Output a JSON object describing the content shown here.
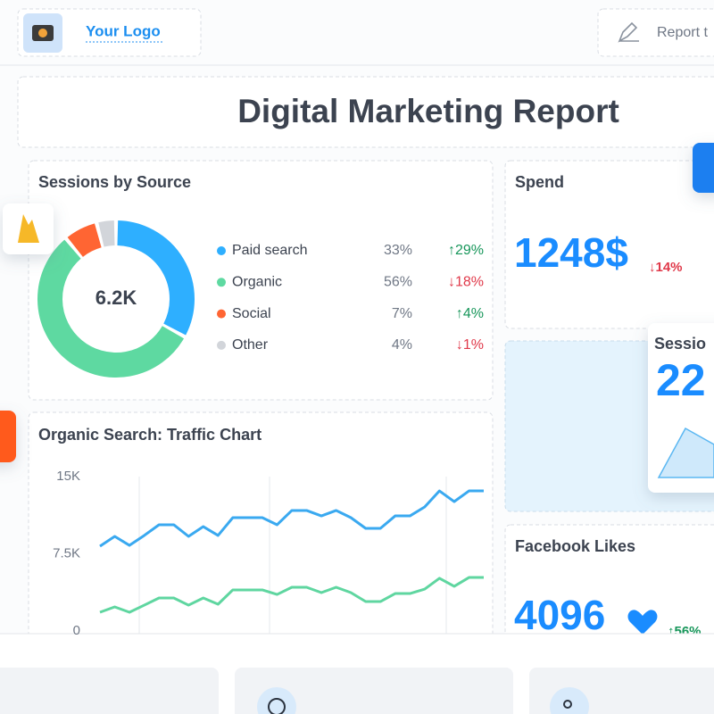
{
  "header": {
    "logo_text": "Your Logo",
    "action": "Report t"
  },
  "title": "Digital Marketing Report",
  "sessions_by_source": {
    "title": "Sessions by Source",
    "center_label": "6.2K",
    "items": [
      {
        "name": "Paid search",
        "color": "#2eafff",
        "share": 33,
        "share_label": "33%",
        "change_label": "↑29%",
        "change_color": "#17965a"
      },
      {
        "name": "Organic",
        "color": "#5ed9a1",
        "share": 56,
        "share_label": "56%",
        "change_label": "↓18%",
        "change_color": "#e0394a"
      },
      {
        "name": "Social",
        "color": "#ff6533",
        "share": 7,
        "share_label": "7%",
        "change_label": "↑4%",
        "change_color": "#17965a"
      },
      {
        "name": "Other",
        "color": "#d2d5da",
        "share": 4,
        "share_label": "4%",
        "change_label": "↓1%",
        "change_color": "#e0394a"
      }
    ]
  },
  "traffic_chart": {
    "type": "line",
    "title": "Organic Search: Traffic Chart",
    "ylim": [
      0,
      15000
    ],
    "yticks": [
      0,
      {
        "value": 7500,
        "label": "7.5K"
      },
      {
        "value": 15000,
        "label": "15K"
      }
    ],
    "series": [
      {
        "color": "#3aa9f0",
        "values": [
          8240,
          9190,
          8320,
          9280,
          10320,
          10320,
          9190,
          10140,
          9280,
          11010,
          11010,
          11010,
          10320,
          11710,
          11710,
          11180,
          11710,
          11010,
          9970,
          9970,
          11180,
          11180,
          12050,
          13610,
          12570,
          13610,
          13610
        ]
      },
      {
        "color": "#5fd6a0",
        "values": [
          1820,
          2340,
          1820,
          2510,
          3210,
          3210,
          2510,
          3210,
          2600,
          3990,
          3990,
          3990,
          3550,
          4250,
          4250,
          3730,
          4250,
          3730,
          2860,
          2860,
          3640,
          3640,
          4070,
          5120,
          4340,
          5200,
          5200
        ]
      }
    ]
  },
  "spend": {
    "title": "Spend",
    "value": "1248$",
    "change": "↓14%"
  },
  "sessions_card": {
    "title": "Sessio",
    "value": "22"
  },
  "facebook": {
    "title": "Facebook Likes",
    "value": "4096",
    "change": "↑56%"
  }
}
